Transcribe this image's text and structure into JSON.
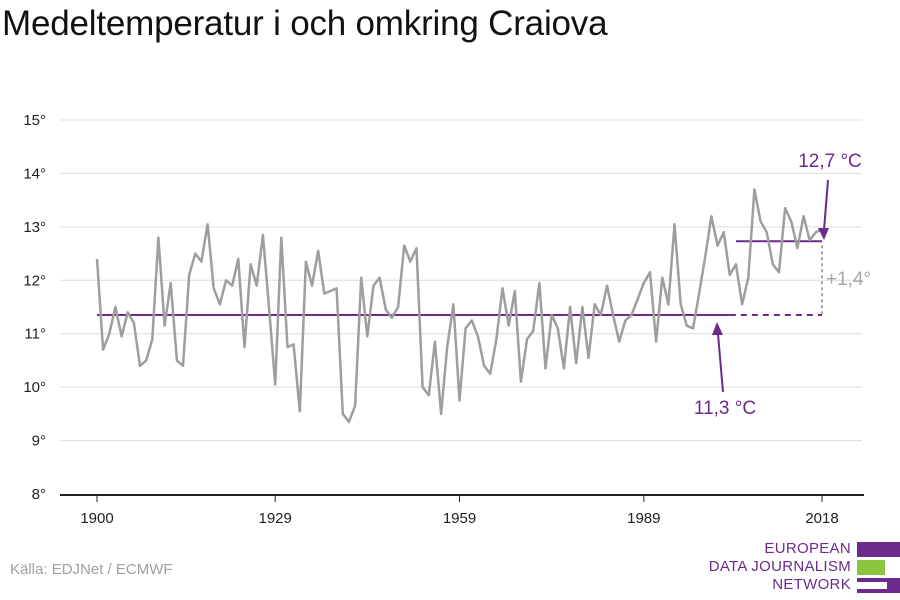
{
  "title": "Medeltemperatur i och omkring Craiova",
  "source": "Källa: EDJNet / ECMWF",
  "logo": {
    "line1": "EUROPEAN",
    "line2": "DATA JOURNALISM",
    "line3": "NETWORK"
  },
  "colors": {
    "series": "#9e9e9e",
    "accent": "#6b2a8c",
    "gridline": "#dcdcdc",
    "axis": "#222222",
    "diff": "#a6a6a6",
    "logo_green": "#8bc53f"
  },
  "chart_data": {
    "type": "line",
    "x": [
      1900,
      1901,
      1902,
      1903,
      1904,
      1905,
      1906,
      1907,
      1908,
      1909,
      1910,
      1911,
      1912,
      1913,
      1914,
      1915,
      1916,
      1917,
      1918,
      1919,
      1920,
      1921,
      1922,
      1923,
      1924,
      1925,
      1926,
      1927,
      1928,
      1929,
      1930,
      1931,
      1932,
      1933,
      1934,
      1935,
      1936,
      1937,
      1938,
      1939,
      1940,
      1941,
      1942,
      1943,
      1944,
      1945,
      1946,
      1947,
      1948,
      1949,
      1950,
      1951,
      1952,
      1953,
      1954,
      1955,
      1956,
      1957,
      1958,
      1959,
      1960,
      1961,
      1962,
      1963,
      1964,
      1965,
      1966,
      1967,
      1968,
      1969,
      1970,
      1971,
      1972,
      1973,
      1974,
      1975,
      1976,
      1977,
      1978,
      1979,
      1980,
      1981,
      1982,
      1983,
      1984,
      1985,
      1986,
      1987,
      1988,
      1989,
      1990,
      1991,
      1992,
      1993,
      1994,
      1995,
      1996,
      1997,
      1998,
      1999,
      2000,
      2001,
      2002,
      2003,
      2004,
      2005,
      2006,
      2007,
      2008,
      2009,
      2010,
      2011,
      2012,
      2013,
      2014,
      2015,
      2016,
      2017,
      2018
    ],
    "y": [
      12.4,
      10.7,
      11.0,
      11.5,
      10.95,
      11.4,
      11.2,
      10.4,
      10.5,
      10.9,
      12.8,
      11.15,
      11.95,
      10.5,
      10.4,
      12.1,
      12.5,
      12.35,
      13.05,
      11.85,
      11.55,
      12.0,
      11.9,
      12.4,
      10.75,
      12.3,
      11.9,
      12.85,
      11.5,
      10.05,
      12.8,
      10.75,
      10.8,
      9.55,
      12.35,
      11.9,
      12.55,
      11.75,
      11.8,
      11.85,
      9.5,
      9.35,
      9.65,
      12.05,
      10.95,
      11.9,
      12.05,
      11.45,
      11.3,
      11.5,
      12.65,
      12.35,
      12.6,
      10.0,
      9.85,
      10.85,
      9.5,
      10.75,
      11.55,
      9.75,
      11.1,
      11.25,
      10.95,
      10.4,
      10.25,
      10.9,
      11.85,
      11.15,
      11.8,
      10.1,
      10.9,
      11.05,
      11.95,
      10.35,
      11.35,
      11.1,
      10.35,
      11.5,
      10.45,
      11.5,
      10.55,
      11.55,
      11.35,
      11.9,
      11.35,
      10.85,
      11.25,
      11.35,
      11.65,
      11.95,
      12.15,
      10.85,
      12.05,
      11.55,
      13.05,
      11.55,
      11.15,
      11.1,
      11.75,
      12.45,
      13.2,
      12.65,
      12.9,
      12.1,
      12.3,
      11.55,
      12.05,
      13.7,
      13.1,
      12.9,
      12.3,
      12.15,
      13.35,
      13.1,
      12.6,
      13.2,
      12.75,
      12.9,
      12.95
    ],
    "xticks": [
      "1900",
      "1929",
      "1959",
      "1989",
      "2018"
    ],
    "yticks": [
      "8°",
      "9°",
      "10°",
      "11°",
      "12°",
      "13°",
      "14°",
      "15°"
    ],
    "ylim": [
      8,
      15
    ],
    "xlim": [
      1900,
      2018
    ],
    "grid": true,
    "reference_lines": [
      {
        "label": "11,3 °C",
        "value": 11.35,
        "x_start": 1900,
        "x_end": 2018,
        "solid_until": 2003
      },
      {
        "label": "12,7 °C",
        "value": 12.73,
        "x_start": 2004,
        "x_end": 2018
      }
    ],
    "difference_label": "+1,4°"
  }
}
